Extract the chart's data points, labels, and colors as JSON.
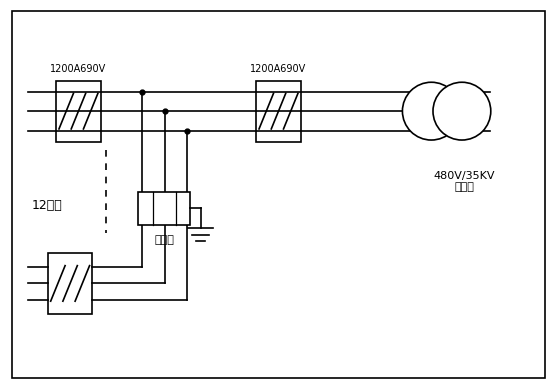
{
  "bg_color": "#ffffff",
  "border_color": "#000000",
  "line_color": "#000000",
  "text_color": "#000000",
  "label_top_left": "1200A690V",
  "label_top_right": "1200A690V",
  "label_transformer": "480V/35KV\n升压变",
  "label_parallel": "12并联",
  "label_arrester": "防雷器",
  "fig_width": 5.57,
  "fig_height": 3.89,
  "dpi": 100
}
